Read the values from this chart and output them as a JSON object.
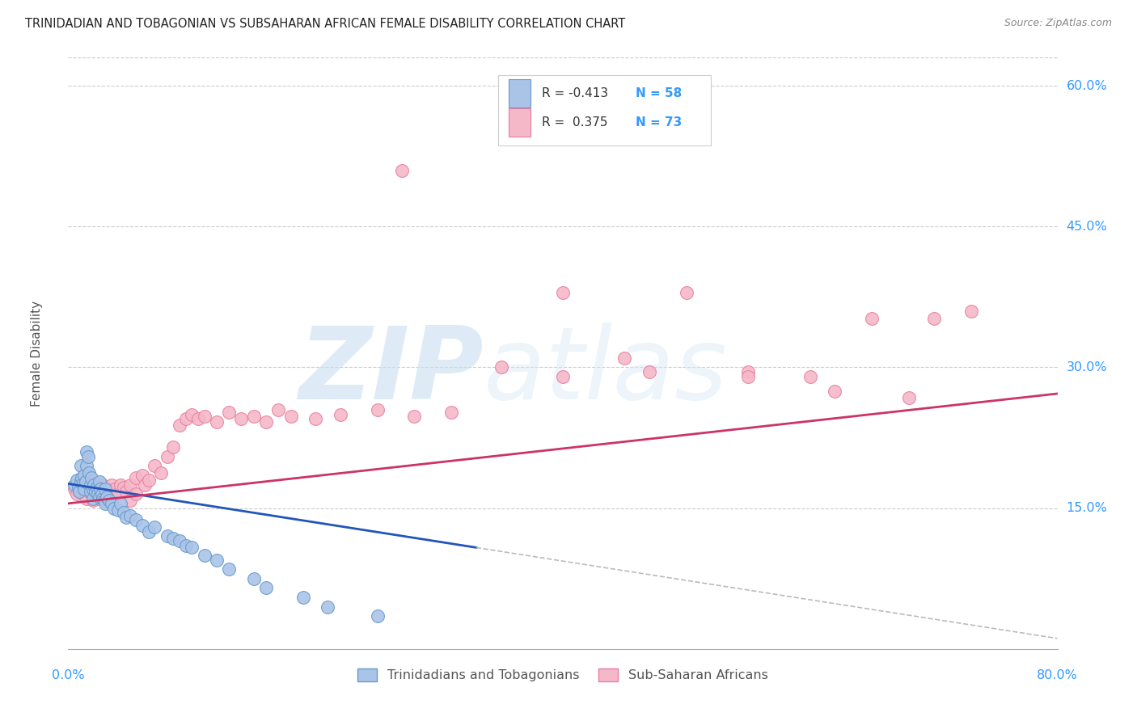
{
  "title": "TRINIDADIAN AND TOBAGONIAN VS SUBSAHARAN AFRICAN FEMALE DISABILITY CORRELATION CHART",
  "source": "Source: ZipAtlas.com",
  "ylabel": "Female Disability",
  "xlim": [
    0.0,
    0.8
  ],
  "ylim": [
    0.0,
    0.63
  ],
  "yticks": [
    0.15,
    0.3,
    0.45,
    0.6
  ],
  "ytick_labels": [
    "15.0%",
    "30.0%",
    "45.0%",
    "60.0%"
  ],
  "grid_color": "#cccccc",
  "background_color": "#ffffff",
  "watermark_zip": "ZIP",
  "watermark_atlas": "atlas",
  "legend_R1": "-0.413",
  "legend_N1": "58",
  "legend_R2": "0.375",
  "legend_N2": "73",
  "blue_scatter_face": "#aac4e8",
  "blue_scatter_edge": "#6699cc",
  "pink_scatter_face": "#f5b8c8",
  "pink_scatter_edge": "#e87fa0",
  "trendline_blue_color": "#2255bb",
  "trendline_pink_color": "#cc3366",
  "trendline_dashed_color": "#bbbbbb",
  "label_color": "#3399ff",
  "trin_x": [
    0.005,
    0.007,
    0.008,
    0.009,
    0.01,
    0.01,
    0.011,
    0.012,
    0.013,
    0.013,
    0.014,
    0.015,
    0.015,
    0.016,
    0.017,
    0.018,
    0.018,
    0.019,
    0.02,
    0.02,
    0.021,
    0.022,
    0.023,
    0.024,
    0.025,
    0.025,
    0.026,
    0.027,
    0.028,
    0.029,
    0.03,
    0.03,
    0.031,
    0.033,
    0.035,
    0.037,
    0.04,
    0.042,
    0.045,
    0.047,
    0.05,
    0.055,
    0.06,
    0.065,
    0.07,
    0.08,
    0.085,
    0.09,
    0.095,
    0.1,
    0.11,
    0.12,
    0.13,
    0.15,
    0.16,
    0.19,
    0.21,
    0.25
  ],
  "trin_y": [
    0.175,
    0.18,
    0.172,
    0.168,
    0.195,
    0.178,
    0.182,
    0.176,
    0.185,
    0.17,
    0.178,
    0.21,
    0.195,
    0.205,
    0.188,
    0.175,
    0.168,
    0.182,
    0.17,
    0.16,
    0.175,
    0.168,
    0.172,
    0.165,
    0.178,
    0.162,
    0.17,
    0.165,
    0.16,
    0.158,
    0.17,
    0.155,
    0.162,
    0.158,
    0.155,
    0.15,
    0.148,
    0.155,
    0.145,
    0.14,
    0.142,
    0.138,
    0.132,
    0.125,
    0.13,
    0.12,
    0.118,
    0.115,
    0.11,
    0.108,
    0.1,
    0.095,
    0.085,
    0.075,
    0.065,
    0.055,
    0.045,
    0.035
  ],
  "sub_x": [
    0.005,
    0.007,
    0.008,
    0.009,
    0.01,
    0.012,
    0.013,
    0.015,
    0.015,
    0.017,
    0.018,
    0.02,
    0.02,
    0.022,
    0.023,
    0.025,
    0.025,
    0.027,
    0.028,
    0.03,
    0.03,
    0.032,
    0.033,
    0.035,
    0.035,
    0.038,
    0.04,
    0.042,
    0.045,
    0.047,
    0.05,
    0.05,
    0.055,
    0.055,
    0.06,
    0.062,
    0.065,
    0.07,
    0.075,
    0.08,
    0.085,
    0.09,
    0.095,
    0.1,
    0.105,
    0.11,
    0.12,
    0.13,
    0.14,
    0.15,
    0.16,
    0.17,
    0.18,
    0.2,
    0.22,
    0.25,
    0.28,
    0.31,
    0.35,
    0.4,
    0.45,
    0.5,
    0.55,
    0.6,
    0.65,
    0.7,
    0.73,
    0.27,
    0.4,
    0.47,
    0.55,
    0.62,
    0.68
  ],
  "sub_y": [
    0.17,
    0.165,
    0.175,
    0.168,
    0.172,
    0.165,
    0.175,
    0.165,
    0.16,
    0.168,
    0.175,
    0.168,
    0.158,
    0.172,
    0.165,
    0.175,
    0.16,
    0.168,
    0.175,
    0.165,
    0.172,
    0.16,
    0.168,
    0.175,
    0.158,
    0.17,
    0.165,
    0.175,
    0.172,
    0.168,
    0.175,
    0.158,
    0.182,
    0.165,
    0.185,
    0.175,
    0.18,
    0.195,
    0.188,
    0.205,
    0.215,
    0.238,
    0.245,
    0.25,
    0.245,
    0.248,
    0.242,
    0.252,
    0.245,
    0.248,
    0.242,
    0.255,
    0.248,
    0.245,
    0.25,
    0.255,
    0.248,
    0.252,
    0.3,
    0.29,
    0.31,
    0.38,
    0.295,
    0.29,
    0.352,
    0.352,
    0.36,
    0.51,
    0.38,
    0.295,
    0.29,
    0.275,
    0.268
  ]
}
